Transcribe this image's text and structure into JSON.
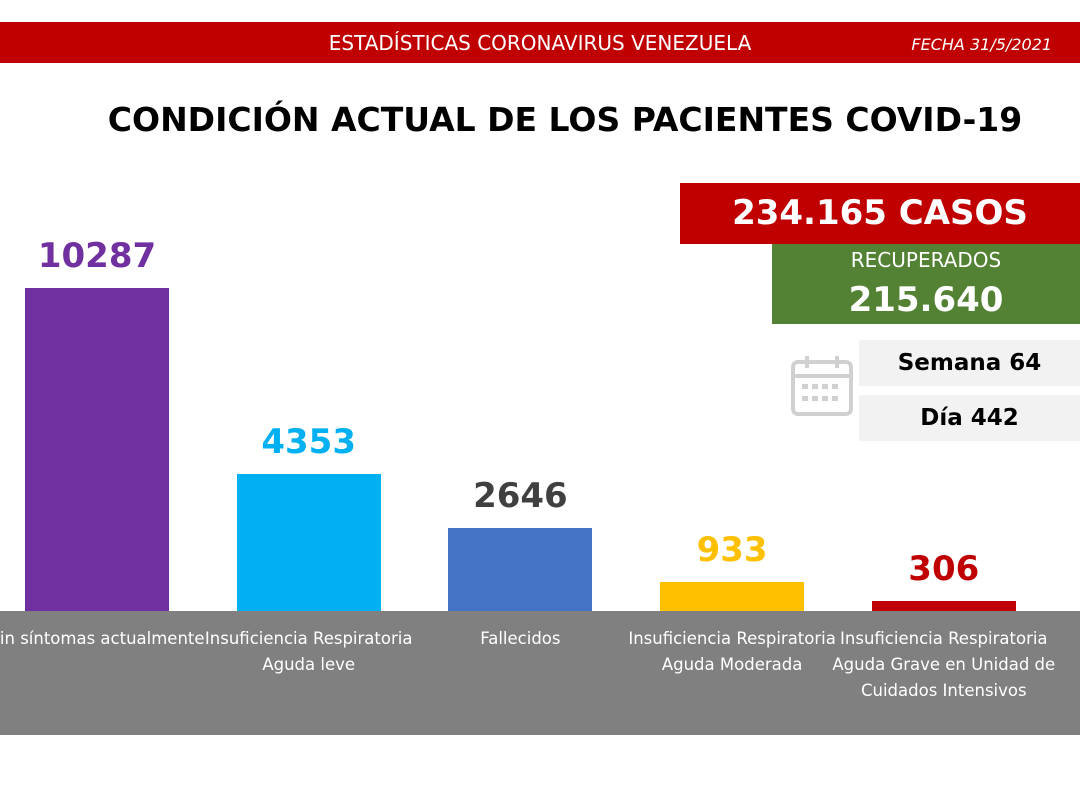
{
  "header": {
    "title": "ESTADÍSTICAS CORONAVIRUS VENEZUELA",
    "date": "FECHA 31/5/2021"
  },
  "chart_data": {
    "type": "bar",
    "title": "CONDICIÓN ACTUAL DE LOS PACIENTES COVID-19",
    "categories": [
      "Sin síntomas actualmente",
      "Insuficiencia Respiratoria Aguda leve",
      "Fallecidos",
      "Insuficiencia Respiratoria Aguda Moderada",
      "Insuficiencia Respiratoria Aguda Grave en Unidad de Cuidados Intensivos"
    ],
    "values": [
      10287,
      4353,
      2646,
      933,
      306
    ],
    "colors": [
      "#7030a0",
      "#00b0f0",
      "#4472c4",
      "#ffc000",
      "#c00000"
    ],
    "label_colors": [
      "#7030a0",
      "#00b0f0",
      "#404040",
      "#ffc000",
      "#c00000"
    ]
  },
  "panel": {
    "cases": "234.165 CASOS",
    "recovered_label": "RECUPERADOS",
    "recovered": "215.640",
    "week": "Semana 64",
    "day": "Día 442"
  }
}
